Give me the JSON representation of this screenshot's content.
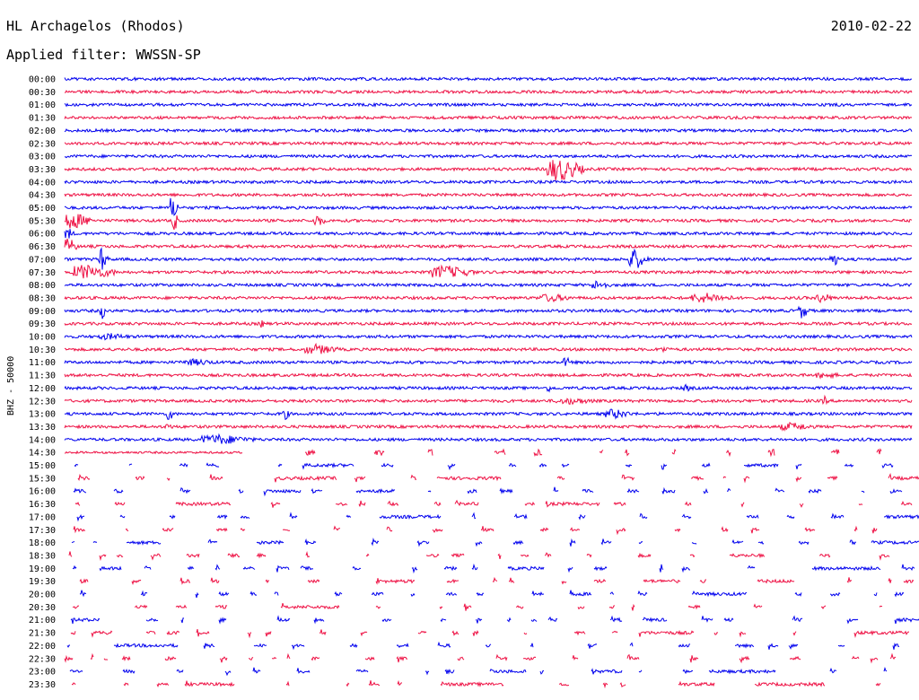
{
  "header": {
    "station": "HL Archagelos (Rhodos)",
    "date": "2010-02-22",
    "filter_prefix": "Applied filter:",
    "filter_name": "WWSSN-SP"
  },
  "chart_data": {
    "type": "line",
    "title": "HL Archagelos (Rhodos)",
    "ylabel": "BHZ - 50000",
    "row_labels": [
      "00:00",
      "00:30",
      "01:00",
      "01:30",
      "02:00",
      "02:30",
      "03:00",
      "03:30",
      "04:00",
      "04:30",
      "05:00",
      "05:30",
      "06:00",
      "06:30",
      "07:00",
      "07:30",
      "08:00",
      "08:30",
      "09:00",
      "09:30",
      "10:00",
      "10:30",
      "11:00",
      "11:30",
      "12:00",
      "12:30",
      "13:00",
      "13:30",
      "14:00",
      "14:30",
      "15:00",
      "15:30",
      "16:00",
      "16:30",
      "17:00",
      "17:30",
      "18:00",
      "18:30",
      "19:00",
      "19:30",
      "20:00",
      "20:30",
      "21:00",
      "21:30",
      "22:00",
      "22:30",
      "23:00",
      "23:30"
    ],
    "colors": [
      "#0000ee",
      "#ee1144"
    ],
    "continuous_until_row": 29,
    "trace_14_30_fraction": 0.21,
    "grid": false
  }
}
